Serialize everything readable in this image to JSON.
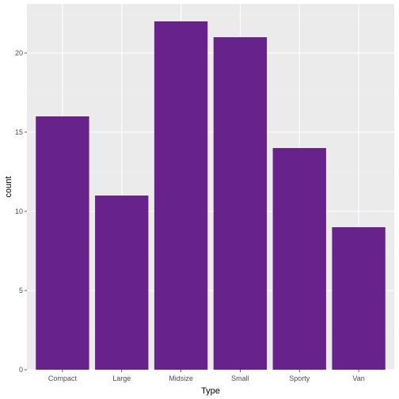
{
  "chart_data": {
    "type": "bar",
    "categories": [
      "Compact",
      "Large",
      "Midsize",
      "Small",
      "Sporty",
      "Van"
    ],
    "values": [
      16,
      11,
      22,
      21,
      14,
      9
    ],
    "xlabel": "Type",
    "ylabel": "count",
    "ylim": [
      0,
      23.1
    ],
    "yticks": [
      0,
      5,
      10,
      15,
      20
    ],
    "grid": true,
    "legend": "none",
    "colors": {
      "bar": "#68228b",
      "panel_background": "#ebebeb",
      "grid_major": "#ffffff",
      "grid_minor": "#f2f2f2",
      "tick_label": "#4d4d4d",
      "axis_title": "#000000"
    }
  }
}
